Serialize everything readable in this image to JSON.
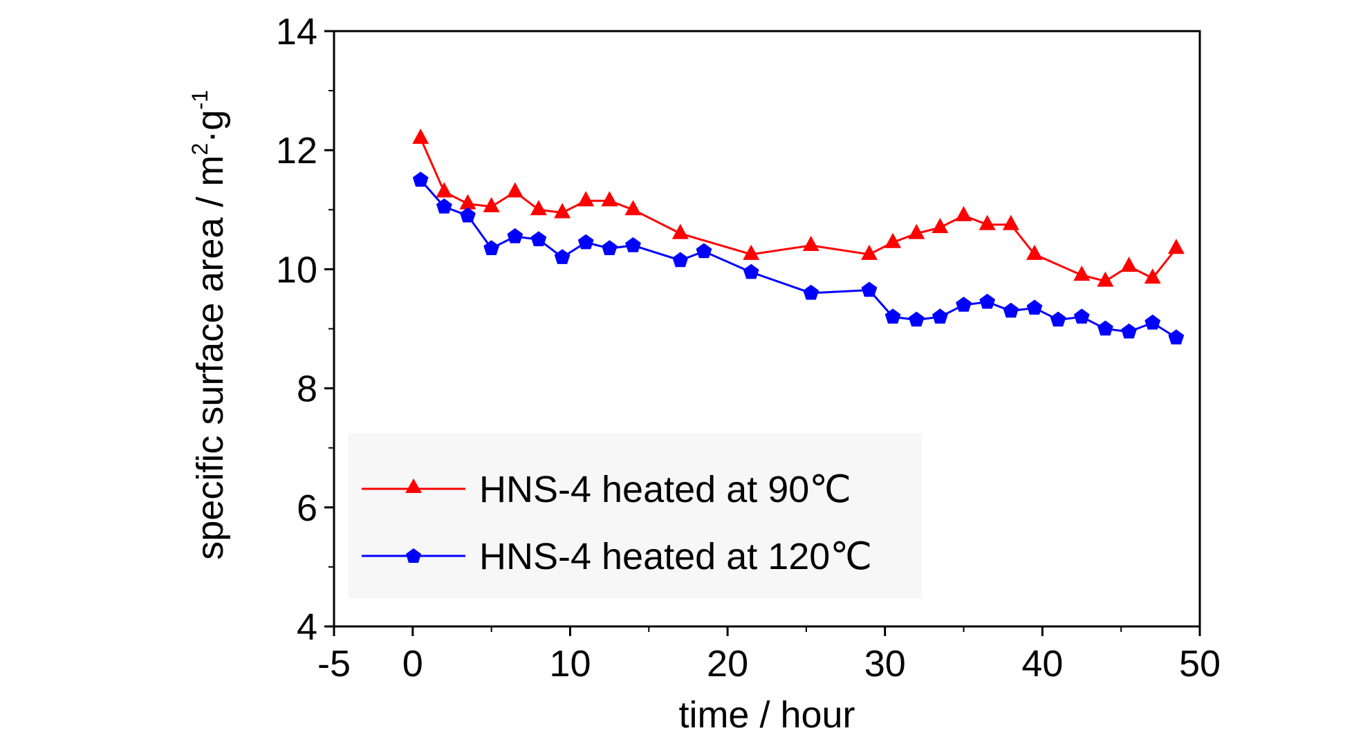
{
  "chart_data": {
    "type": "line",
    "title": "",
    "xlabel": "time / hour",
    "ylabel": "specific surface area / m",
    "ylabel_sup1": "2",
    "ylabel_mid": "·g",
    "ylabel_sup2": "-1",
    "xlim": [
      -5,
      50
    ],
    "ylim": [
      4,
      14
    ],
    "x_ticks": [
      "-5",
      "0",
      "10",
      "20",
      "30",
      "40",
      "50"
    ],
    "y_ticks": [
      "4",
      "6",
      "8",
      "10",
      "12",
      "14"
    ],
    "grid": false,
    "legend_position": "bottom-left",
    "series": [
      {
        "name": "HNS-4 heated at 90℃",
        "color": "#ff0000",
        "marker": "triangle",
        "x": [
          0.5,
          2,
          3.5,
          5,
          6.5,
          8,
          9.5,
          11,
          12.5,
          14,
          17,
          21.5,
          25.3,
          29,
          30.5,
          32,
          33.5,
          35,
          36.5,
          38,
          39.5,
          42.5,
          44,
          45.5,
          47,
          48.5
        ],
        "y": [
          12.2,
          11.3,
          11.1,
          11.05,
          11.3,
          11.0,
          10.95,
          11.15,
          11.15,
          11.0,
          10.6,
          10.25,
          10.4,
          10.25,
          10.45,
          10.6,
          10.7,
          10.9,
          10.75,
          10.75,
          10.25,
          9.9,
          9.8,
          10.05,
          9.85,
          10.35
        ]
      },
      {
        "name": "HNS-4 heated at 120℃",
        "color": "#0000ff",
        "marker": "pentagon",
        "x": [
          0.5,
          2,
          3.5,
          5,
          6.5,
          8,
          9.5,
          11,
          12.5,
          14,
          17,
          18.5,
          21.5,
          25.3,
          29,
          30.5,
          32,
          33.5,
          35,
          36.5,
          38,
          39.5,
          41,
          42.5,
          44,
          45.5,
          47,
          48.5
        ],
        "y": [
          11.5,
          11.05,
          10.9,
          10.35,
          10.55,
          10.5,
          10.2,
          10.45,
          10.35,
          10.4,
          10.15,
          10.3,
          9.95,
          9.6,
          9.65,
          9.2,
          9.15,
          9.2,
          9.4,
          9.45,
          9.3,
          9.35,
          9.15,
          9.2,
          9.0,
          8.95,
          9.1,
          8.85
        ]
      }
    ]
  }
}
